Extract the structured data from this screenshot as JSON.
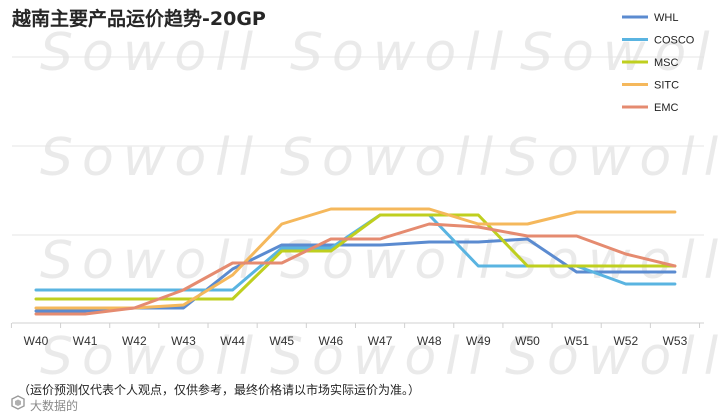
{
  "chart_data": {
    "type": "line",
    "title": "越南主要产品运价趋势-20GP",
    "xlabel": "",
    "ylabel": "",
    "categories": [
      "W40",
      "W41",
      "W42",
      "W43",
      "W44",
      "W45",
      "W46",
      "W47",
      "W48",
      "W49",
      "W50",
      "W51",
      "W52",
      "W53"
    ],
    "ylim": [
      0,
      100
    ],
    "grid": true,
    "legend_position": "top-right",
    "series": [
      {
        "name": "WHL",
        "color": "#5B8BD0",
        "values": [
          4,
          4,
          5,
          5,
          18,
          26,
          26,
          26,
          27,
          27,
          28,
          17,
          17,
          17
        ]
      },
      {
        "name": "COSCO",
        "color": "#5AB4E1",
        "values": [
          11,
          11,
          11,
          11,
          11,
          25,
          25,
          36,
          36,
          19,
          19,
          19,
          13,
          13
        ]
      },
      {
        "name": "MSC",
        "color": "#BFCF1F",
        "values": [
          8,
          8,
          8,
          8,
          8,
          24,
          24,
          36,
          36,
          36,
          19,
          19,
          19,
          19
        ]
      },
      {
        "name": "SITC",
        "color": "#F5B85C",
        "values": [
          5,
          5,
          5,
          6,
          16,
          33,
          38,
          38,
          38,
          33,
          33,
          37,
          37,
          37
        ]
      },
      {
        "name": "EMC",
        "color": "#E58B70",
        "values": [
          3,
          3,
          5,
          11,
          20,
          20,
          28,
          28,
          33,
          32,
          29,
          29,
          23,
          19
        ]
      }
    ]
  },
  "watermark": "Sowoll",
  "footnote": "（运价预测仅代表个人观点，仅供参考，最终价格请以市场实际运价为准。）",
  "brand_logo_text": "大数据的",
  "brand_logo_icon": "hexagon-logo-icon"
}
